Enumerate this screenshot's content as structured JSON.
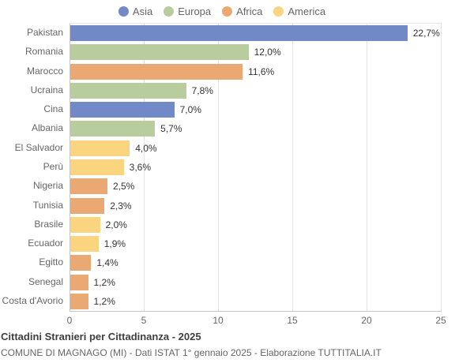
{
  "legend": {
    "items": [
      {
        "label": "Asia",
        "color": "#7189c6"
      },
      {
        "label": "Europa",
        "color": "#b9cc9d"
      },
      {
        "label": "Africa",
        "color": "#eaa872"
      },
      {
        "label": "America",
        "color": "#fbd480"
      }
    ]
  },
  "chart_data": {
    "type": "bar",
    "orientation": "horizontal",
    "title": "Cittadini Stranieri per Cittadinanza - 2025",
    "subtitle": "COMUNE DI MAGNAGO (MI) - Dati ISTAT 1° gennaio 2025 - Elaborazione TUTTITALIA.IT",
    "categories": [
      "Pakistan",
      "Romania",
      "Marocco",
      "Ucraina",
      "Cina",
      "Albania",
      "El Salvador",
      "Perù",
      "Nigeria",
      "Tunisia",
      "Brasile",
      "Ecuador",
      "Egitto",
      "Senegal",
      "Costa d'Avorio"
    ],
    "values": [
      22.7,
      12.0,
      11.6,
      7.8,
      7.0,
      5.7,
      4.0,
      3.6,
      2.5,
      2.3,
      2.0,
      1.9,
      1.4,
      1.2,
      1.2
    ],
    "value_labels": [
      "22,7%",
      "12,0%",
      "11,6%",
      "7,8%",
      "7,0%",
      "5,7%",
      "4,0%",
      "3,6%",
      "2,5%",
      "2,3%",
      "2,0%",
      "1,9%",
      "1,4%",
      "1,2%",
      "1,2%"
    ],
    "groups": [
      "Asia",
      "Europa",
      "Africa",
      "Europa",
      "Asia",
      "Europa",
      "America",
      "America",
      "Africa",
      "Africa",
      "America",
      "America",
      "Africa",
      "Africa",
      "Africa"
    ],
    "xlim": [
      0,
      25
    ],
    "x_ticks": [
      0,
      5,
      10,
      15,
      20,
      25
    ],
    "grid": true,
    "legend_position": "top",
    "bar_text_color": "#333333",
    "axis_text_color": "#666666",
    "gridline_color": "#e3e3e3"
  }
}
